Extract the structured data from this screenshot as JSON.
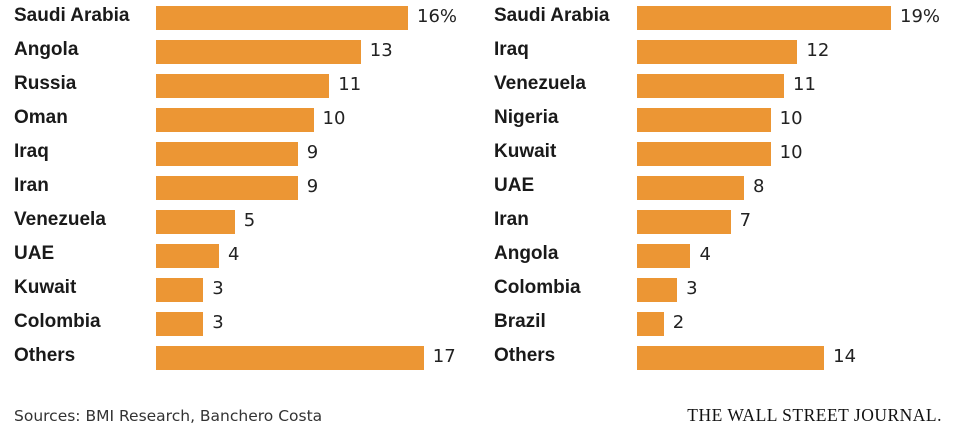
{
  "chart_data": [
    {
      "type": "bar",
      "orientation": "horizontal",
      "categories": [
        "Saudi Arabia",
        "Angola",
        "Russia",
        "Oman",
        "Iraq",
        "Iran",
        "Venezuela",
        "UAE",
        "Kuwait",
        "Colombia",
        "Others"
      ],
      "values": [
        16,
        13,
        11,
        10,
        9,
        9,
        5,
        4,
        3,
        3,
        17
      ],
      "value_labels": [
        "16%",
        "13",
        "11",
        "10",
        "9",
        "9",
        "5",
        "4",
        "3",
        "3",
        "17"
      ],
      "bar_color": "#ec9634",
      "xlim": [
        0,
        17
      ]
    },
    {
      "type": "bar",
      "orientation": "horizontal",
      "categories": [
        "Saudi Arabia",
        "Iraq",
        "Venezuela",
        "Nigeria",
        "Kuwait",
        "UAE",
        "Iran",
        "Angola",
        "Colombia",
        "Brazil",
        "Others"
      ],
      "values": [
        19,
        12,
        11,
        10,
        10,
        8,
        7,
        4,
        3,
        2,
        14
      ],
      "value_labels": [
        "19%",
        "12",
        "11",
        "10",
        "10",
        "8",
        "7",
        "4",
        "3",
        "2",
        "14"
      ],
      "bar_color": "#ec9634",
      "xlim": [
        0,
        19
      ]
    }
  ],
  "footer": {
    "sources": "Sources: BMI Research, Banchero Costa",
    "brand": "THE WALL STREET JOURNAL."
  }
}
